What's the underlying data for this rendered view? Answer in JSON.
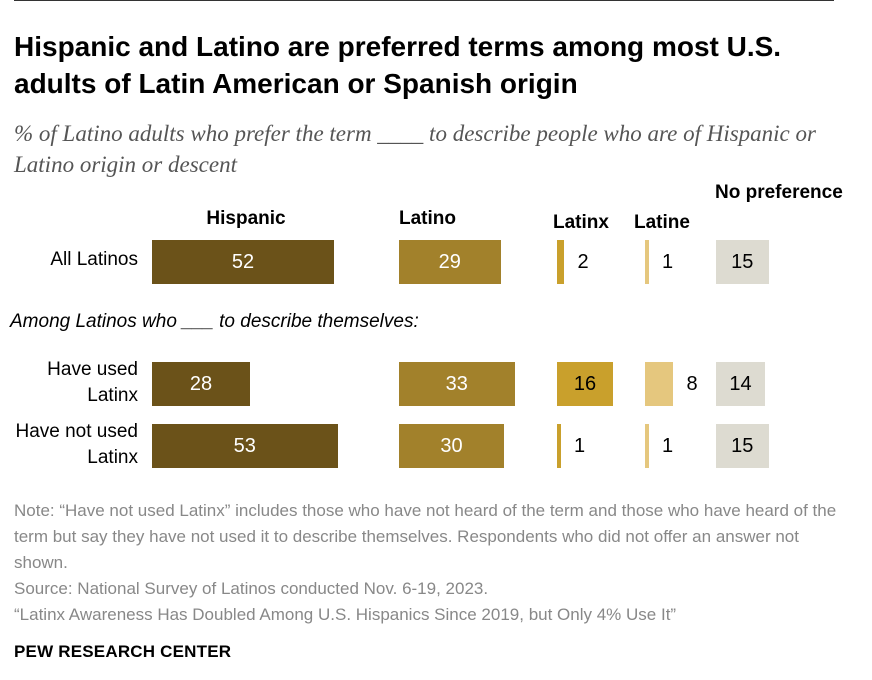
{
  "title": "Hispanic and Latino are preferred terms among most U.S. adults of Latin American or Spanish origin",
  "subtitle": "% of Latino adults who prefer the term ____ to describe people who are of Hispanic or Latino origin or descent",
  "section_label": "Among Latinos who ___ to describe themselves:",
  "notes": {
    "note": "Note: “Have not used Latinx” includes those who have not heard of the term and those who have heard of the term but say they have not used it to describe themselves. Respondents who did not offer an answer not shown.",
    "source": "Source: National Survey of Latinos conducted Nov. 6-19, 2023.",
    "report": "“Latinx Awareness Has Doubled Among U.S. Hispanics Since 2019, but Only 4% Use It”"
  },
  "brand": "PEW RESEARCH CENTER",
  "colors": {
    "hispanic": "#6b5219",
    "latino": "#a2812b",
    "latinx": "#c9a02c",
    "latine": "#e5c77e",
    "no_preference": "#dddbd1"
  },
  "chart_data": {
    "type": "bar",
    "series": [
      {
        "name": "Hispanic",
        "values": [
          52,
          28,
          53
        ]
      },
      {
        "name": "Latino",
        "values": [
          29,
          33,
          30
        ]
      },
      {
        "name": "Latinx",
        "values": [
          2,
          16,
          1
        ]
      },
      {
        "name": "Latine",
        "values": [
          1,
          8,
          1
        ]
      },
      {
        "name": "No preference",
        "values": [
          15,
          14,
          15
        ]
      }
    ],
    "categories": [
      "All Latinos",
      "Have used Latinx",
      "Have not used Latinx"
    ],
    "unit": "%",
    "grid": false
  }
}
